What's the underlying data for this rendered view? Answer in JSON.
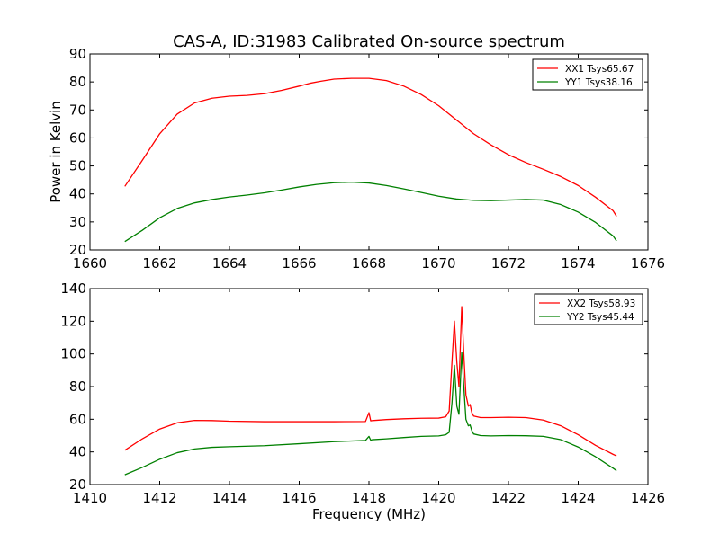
{
  "figure": {
    "title": "CAS-A, ID:31983 Calibrated On-source spectrum"
  },
  "colors": {
    "series_red": "#ff0000",
    "series_green": "#008000",
    "axes": "#000000",
    "background": "#ffffff"
  },
  "chart_data": [
    {
      "type": "line",
      "title": "CAS-A, ID:31983 Calibrated On-source spectrum",
      "xlabel": "",
      "ylabel": "Power in Kelvin",
      "xlim": [
        1660,
        1676
      ],
      "ylim": [
        20,
        90
      ],
      "xticks": [
        1660,
        1662,
        1664,
        1666,
        1668,
        1670,
        1672,
        1674,
        1676
      ],
      "yticks": [
        20,
        30,
        40,
        50,
        60,
        70,
        80,
        90
      ],
      "grid": false,
      "legend_position": "top-right",
      "series": [
        {
          "name": "XX1 Tsys65.67",
          "color": "#ff0000",
          "x": [
            1661.0,
            1661.5,
            1662.0,
            1662.5,
            1663.0,
            1663.5,
            1664.0,
            1664.5,
            1665.0,
            1665.5,
            1666.0,
            1666.3,
            1666.6,
            1667.0,
            1667.5,
            1668.0,
            1668.5,
            1669.0,
            1669.5,
            1670.0,
            1670.5,
            1671.0,
            1671.5,
            1672.0,
            1672.5,
            1673.0,
            1673.5,
            1674.0,
            1674.5,
            1675.0,
            1675.1
          ],
          "y": [
            42.7,
            52.0,
            61.5,
            68.5,
            72.5,
            74.2,
            74.9,
            75.2,
            75.8,
            77.0,
            78.5,
            79.5,
            80.2,
            81.0,
            81.3,
            81.3,
            80.5,
            78.5,
            75.5,
            71.5,
            66.5,
            61.5,
            57.5,
            54.0,
            51.2,
            48.8,
            46.2,
            43.0,
            38.8,
            34.0,
            32.0
          ]
        },
        {
          "name": "YY1 Tsys38.16",
          "color": "#008000",
          "x": [
            1661.0,
            1661.5,
            1662.0,
            1662.5,
            1663.0,
            1663.5,
            1664.0,
            1664.5,
            1665.0,
            1665.5,
            1666.0,
            1666.5,
            1667.0,
            1667.5,
            1668.0,
            1668.5,
            1669.0,
            1669.5,
            1670.0,
            1670.5,
            1671.0,
            1671.5,
            1672.0,
            1672.5,
            1673.0,
            1673.5,
            1674.0,
            1674.5,
            1675.0,
            1675.1
          ],
          "y": [
            23.0,
            27.0,
            31.5,
            34.8,
            36.8,
            38.0,
            38.9,
            39.6,
            40.4,
            41.4,
            42.5,
            43.4,
            44.0,
            44.2,
            43.9,
            43.0,
            41.8,
            40.5,
            39.2,
            38.2,
            37.7,
            37.6,
            37.8,
            38.0,
            37.8,
            36.2,
            33.5,
            29.8,
            25.0,
            23.2
          ]
        }
      ]
    },
    {
      "type": "line",
      "title": "",
      "xlabel": "Frequency (MHz)",
      "ylabel": "",
      "xlim": [
        1410,
        1426
      ],
      "ylim": [
        20,
        140
      ],
      "xticks": [
        1410,
        1412,
        1414,
        1416,
        1418,
        1420,
        1422,
        1424,
        1426
      ],
      "yticks": [
        20,
        40,
        60,
        80,
        100,
        120,
        140
      ],
      "grid": false,
      "legend_position": "top-right",
      "series": [
        {
          "name": "XX2 Tsys58.93",
          "color": "#ff0000",
          "x": [
            1411.0,
            1411.5,
            1412.0,
            1412.5,
            1413.0,
            1413.5,
            1414.0,
            1415.0,
            1416.0,
            1417.0,
            1417.9,
            1418.0,
            1418.05,
            1418.1,
            1418.5,
            1419.0,
            1419.5,
            1420.0,
            1420.2,
            1420.3,
            1420.38,
            1420.45,
            1420.52,
            1420.58,
            1420.66,
            1420.72,
            1420.78,
            1420.85,
            1420.9,
            1420.95,
            1421.0,
            1421.2,
            1421.5,
            1422.0,
            1422.5,
            1423.0,
            1423.5,
            1424.0,
            1424.5,
            1425.0,
            1425.1
          ],
          "y": [
            41.0,
            48.0,
            54.0,
            57.8,
            59.3,
            59.2,
            58.8,
            58.5,
            58.5,
            58.5,
            58.6,
            64.0,
            59.0,
            59.2,
            59.8,
            60.3,
            60.6,
            60.7,
            61.5,
            65.0,
            95.0,
            120.0,
            95.0,
            80.0,
            129.0,
            100.0,
            75.0,
            68.0,
            69.0,
            64.0,
            62.0,
            61.0,
            61.0,
            61.2,
            61.0,
            59.5,
            56.0,
            50.5,
            44.0,
            38.5,
            37.5
          ]
        },
        {
          "name": "YY2 Tsys45.44",
          "color": "#008000",
          "x": [
            1411.0,
            1411.5,
            1412.0,
            1412.5,
            1413.0,
            1413.5,
            1414.0,
            1415.0,
            1416.0,
            1417.0,
            1417.9,
            1418.0,
            1418.05,
            1418.1,
            1418.5,
            1419.0,
            1419.5,
            1420.0,
            1420.2,
            1420.3,
            1420.38,
            1420.45,
            1420.52,
            1420.58,
            1420.66,
            1420.72,
            1420.78,
            1420.85,
            1420.9,
            1420.95,
            1421.0,
            1421.2,
            1421.5,
            1422.0,
            1422.5,
            1423.0,
            1423.5,
            1424.0,
            1424.5,
            1425.0,
            1425.1
          ],
          "y": [
            26.0,
            30.5,
            35.5,
            39.5,
            41.8,
            42.8,
            43.2,
            43.8,
            45.0,
            46.3,
            47.0,
            49.5,
            47.2,
            47.5,
            48.0,
            48.8,
            49.5,
            49.8,
            50.5,
            52.0,
            70.0,
            93.0,
            68.0,
            63.0,
            101.0,
            80.0,
            60.0,
            56.0,
            56.5,
            53.0,
            51.0,
            50.0,
            49.8,
            50.0,
            49.9,
            49.5,
            47.5,
            43.0,
            37.0,
            30.0,
            28.5
          ]
        }
      ]
    }
  ]
}
